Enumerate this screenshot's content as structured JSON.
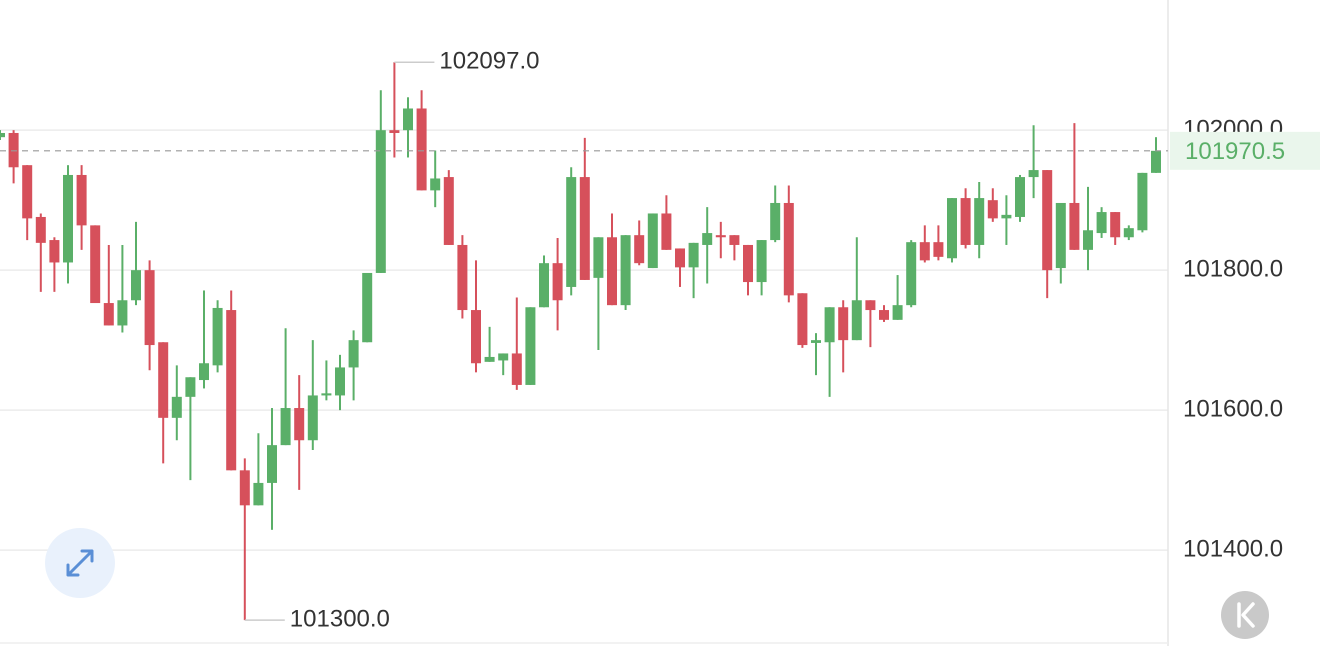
{
  "chart_data": {
    "type": "candlestick",
    "open": [
      101990,
      101996,
      101950,
      101876,
      101843,
      101811,
      101936,
      101864,
      101753,
      101721,
      101757,
      101800,
      101697,
      101589,
      101619,
      101643,
      101664,
      101743,
      101514,
      101464,
      101496,
      101550,
      101603,
      101557,
      101621,
      101621,
      101661,
      101697,
      101796,
      102000,
      102000,
      102031,
      101914,
      101933,
      101836,
      101743,
      101669,
      101671,
      101681,
      101636,
      101747,
      101810,
      101776,
      101933,
      101789,
      101847,
      101750,
      101850,
      101803,
      101881,
      101831,
      101804,
      101836,
      101850,
      101850,
      101836,
      101783,
      101843,
      101896,
      101767,
      101696,
      101697,
      101747,
      101700,
      101757,
      101743,
      101729,
      101750,
      101840,
      101840,
      101817,
      101903,
      101836,
      101900,
      101874,
      101876,
      101933,
      101943,
      101803,
      101896,
      101829,
      101853,
      101883,
      101847,
      101857,
      101939
    ],
    "high": [
      102000,
      102000,
      101950,
      101881,
      101847,
      101950,
      101950,
      101864,
      101836,
      101836,
      101869,
      101814,
      101697,
      101664,
      101647,
      101771,
      101757,
      101771,
      101531,
      101567,
      101603,
      101717,
      101650,
      101700,
      101671,
      101679,
      101714,
      101796,
      102057,
      102097,
      102047,
      102057,
      101971,
      101943,
      101850,
      101814,
      101719,
      101681,
      101761,
      101747,
      101821,
      101846,
      101947,
      101989,
      101847,
      101881,
      101850,
      101871,
      101881,
      101907,
      101831,
      101839,
      101890,
      101869,
      101850,
      101836,
      101843,
      101921,
      101921,
      101767,
      101710,
      101747,
      101757,
      101847,
      101757,
      101750,
      101793,
      101843,
      101864,
      101864,
      101903,
      101917,
      101926,
      101917,
      101907,
      101936,
      102007,
      101943,
      101896,
      102010,
      101919,
      101890,
      101883,
      101864,
      101939,
      101990
    ],
    "low": [
      101986,
      101924,
      101843,
      101769,
      101769,
      101781,
      101829,
      101753,
      101721,
      101711,
      101750,
      101657,
      101524,
      101557,
      101500,
      101631,
      101654,
      101514,
      101300,
      101464,
      101429,
      101550,
      101486,
      101543,
      101614,
      101600,
      101614,
      101697,
      101796,
      101961,
      101961,
      101914,
      101890,
      101836,
      101731,
      101654,
      101669,
      101650,
      101629,
      101636,
      101747,
      101714,
      101764,
      101786,
      101686,
      101750,
      101743,
      101807,
      101803,
      101829,
      101776,
      101760,
      101781,
      101817,
      101814,
      101764,
      101764,
      101840,
      101754,
      101689,
      101650,
      101619,
      101654,
      101700,
      101690,
      101726,
      101729,
      101747,
      101811,
      101814,
      101811,
      101831,
      101817,
      101869,
      101836,
      101869,
      101903,
      101760,
      101781,
      101829,
      101800,
      101846,
      101836,
      101843,
      101854,
      101939
    ],
    "close": [
      101996,
      101947,
      101874,
      101839,
      101811,
      101936,
      101864,
      101753,
      101721,
      101757,
      101800,
      101693,
      101589,
      101619,
      101647,
      101667,
      101746,
      101514,
      101464,
      101496,
      101550,
      101603,
      101557,
      101621,
      101624,
      101661,
      101700,
      101796,
      102000,
      101996,
      102031,
      101914,
      101931,
      101836,
      101743,
      101667,
      101676,
      101681,
      101636,
      101747,
      101810,
      101757,
      101933,
      101786,
      101847,
      101750,
      101850,
      101810,
      101881,
      101829,
      101804,
      101839,
      101853,
      101847,
      101836,
      101783,
      101843,
      101896,
      101764,
      101693,
      101700,
      101747,
      101700,
      101757,
      101743,
      101729,
      101750,
      101840,
      101814,
      101819,
      101903,
      101836,
      101903,
      101874,
      101879,
      101933,
      101943,
      101800,
      101896,
      101829,
      101857,
      101883,
      101847,
      101860,
      101939,
      101970.5
    ],
    "up_color": "#5aaf68",
    "down_color": "#d6505b",
    "ylim": [
      101263,
      102186
    ],
    "yticks": [
      {
        "value": 101400,
        "label": "101400.0"
      },
      {
        "value": 101600,
        "label": "101600.0"
      },
      {
        "value": 101800,
        "label": "101800.0"
      },
      {
        "value": 102000,
        "label": "102000.0"
      }
    ],
    "grid": true,
    "high_marker": {
      "value": 102097,
      "label": "102097.0"
    },
    "low_marker": {
      "value": 101300,
      "label": "101300.0"
    },
    "last_price": {
      "value": 101970.5,
      "label": "101970.5"
    }
  }
}
